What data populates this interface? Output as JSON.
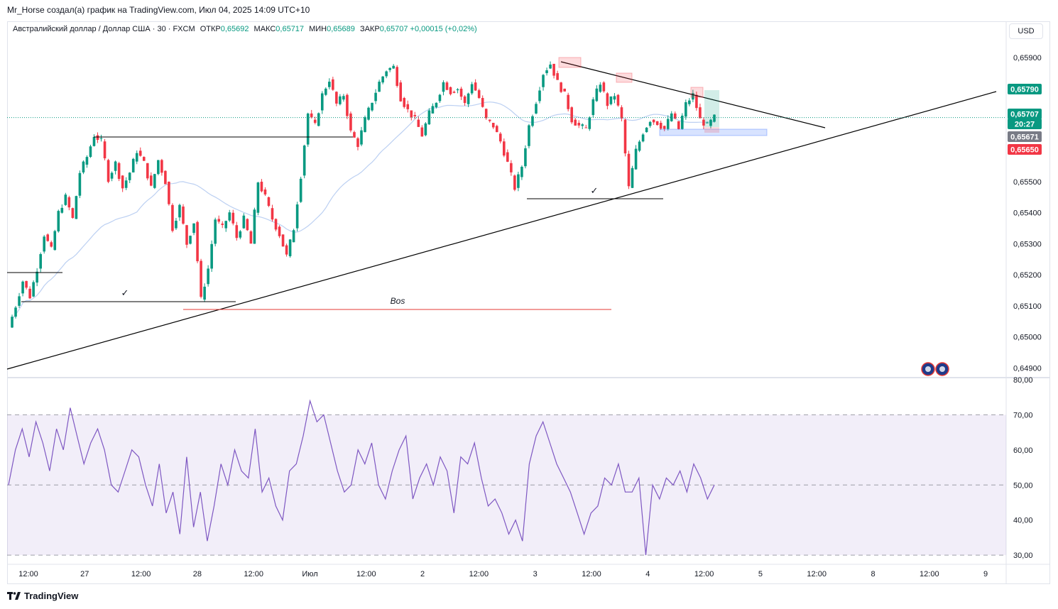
{
  "caption": "Mr_Horse создал(а) график на TradingView.com, Июл 04, 2025 14:09 UTC+10",
  "legend": {
    "symbol": "Австралийский доллар / Доллар США · 30 · FXCM",
    "open_label": "ОТКР",
    "open": "0,65692",
    "high_label": "МАКС",
    "high": "0,65717",
    "low_label": "МИН",
    "low": "0,65689",
    "close_label": "ЗАКР",
    "close": "0,65707",
    "change": "+0,00015 (+0,02%)"
  },
  "currency_button": "USD",
  "brand": "TradingView",
  "colors": {
    "up": "#089981",
    "down": "#f23645",
    "rsi": "#7e57c2",
    "ma": "#bcd0f2",
    "annotation_line": "#000000",
    "bos_line": "#e53935"
  },
  "chart_data": {
    "type": "candlestick",
    "price_axis": {
      "ticks": [
        "0,65900",
        "0,65800",
        "0,65700",
        "0,65600",
        "0,65500",
        "0,65400",
        "0,65300",
        "0,65200",
        "0,65100",
        "0,65000",
        "0,64900"
      ],
      "ylim": [
        0.6488,
        0.6596
      ]
    },
    "time_axis": {
      "ticks": [
        "12:00",
        "27",
        "12:00",
        "28",
        "12:00",
        "Июл",
        "12:00",
        "2",
        "12:00",
        "3",
        "12:00",
        "4",
        "12:00",
        "5",
        "12:00",
        "8",
        "12:00",
        "9"
      ]
    },
    "price_labels": [
      {
        "text": "0,65790",
        "value": 0.6579,
        "color": "#089981"
      },
      {
        "text": "0,65707",
        "value": 0.65707,
        "color": "#089981"
      },
      {
        "text": "20:27",
        "value": 0.65685,
        "color": "#089981"
      },
      {
        "text": "0,65671",
        "value": 0.65671,
        "color": "#787b86"
      },
      {
        "text": "0,65650",
        "value": 0.6565,
        "color": "#f23645"
      }
    ],
    "last_price": 0.65707,
    "ohlc_last": {
      "open": 0.65692,
      "high": 0.65717,
      "low": 0.65689,
      "close": 0.65707
    },
    "price_path": [
      [
        0,
        0.6503
      ],
      [
        2,
        0.651
      ],
      [
        4,
        0.6518
      ],
      [
        6,
        0.6513
      ],
      [
        8,
        0.6522
      ],
      [
        10,
        0.6533
      ],
      [
        12,
        0.6528
      ],
      [
        14,
        0.654
      ],
      [
        16,
        0.6545
      ],
      [
        18,
        0.6538
      ],
      [
        20,
        0.6553
      ],
      [
        22,
        0.6558
      ],
      [
        24,
        0.6565
      ],
      [
        26,
        0.6563
      ],
      [
        28,
        0.6551
      ],
      [
        30,
        0.6556
      ],
      [
        32,
        0.6548
      ],
      [
        34,
        0.6553
      ],
      [
        36,
        0.656
      ],
      [
        38,
        0.6556
      ],
      [
        40,
        0.6548
      ],
      [
        42,
        0.6557
      ],
      [
        44,
        0.655
      ],
      [
        46,
        0.6535
      ],
      [
        48,
        0.6542
      ],
      [
        50,
        0.653
      ],
      [
        52,
        0.6537
      ],
      [
        54,
        0.6512
      ],
      [
        56,
        0.6522
      ],
      [
        58,
        0.6538
      ],
      [
        60,
        0.6535
      ],
      [
        62,
        0.654
      ],
      [
        64,
        0.6532
      ],
      [
        66,
        0.6538
      ],
      [
        68,
        0.653
      ],
      [
        70,
        0.655
      ],
      [
        72,
        0.6545
      ],
      [
        74,
        0.6538
      ],
      [
        76,
        0.6533
      ],
      [
        78,
        0.6526
      ],
      [
        80,
        0.6535
      ],
      [
        82,
        0.6552
      ],
      [
        84,
        0.6572
      ],
      [
        86,
        0.6568
      ],
      [
        88,
        0.6578
      ],
      [
        90,
        0.6583
      ],
      [
        92,
        0.6575
      ],
      [
        94,
        0.6578
      ],
      [
        96,
        0.6566
      ],
      [
        98,
        0.6562
      ],
      [
        100,
        0.657
      ],
      [
        102,
        0.6576
      ],
      [
        104,
        0.6582
      ],
      [
        106,
        0.6586
      ],
      [
        108,
        0.6587
      ],
      [
        110,
        0.6577
      ],
      [
        112,
        0.6573
      ],
      [
        114,
        0.657
      ],
      [
        116,
        0.6565
      ],
      [
        118,
        0.6572
      ],
      [
        120,
        0.6576
      ],
      [
        122,
        0.6582
      ],
      [
        124,
        0.6579
      ],
      [
        126,
        0.658
      ],
      [
        128,
        0.6575
      ],
      [
        130,
        0.6582
      ],
      [
        132,
        0.6577
      ],
      [
        134,
        0.657
      ],
      [
        136,
        0.6568
      ],
      [
        138,
        0.6563
      ],
      [
        140,
        0.6556
      ],
      [
        142,
        0.6548
      ],
      [
        144,
        0.6555
      ],
      [
        146,
        0.6568
      ],
      [
        148,
        0.6576
      ],
      [
        150,
        0.6585
      ],
      [
        152,
        0.6588
      ],
      [
        154,
        0.6582
      ],
      [
        156,
        0.6578
      ],
      [
        158,
        0.657
      ],
      [
        160,
        0.6568
      ],
      [
        162,
        0.6567
      ],
      [
        164,
        0.6576
      ],
      [
        166,
        0.6582
      ],
      [
        168,
        0.6575
      ],
      [
        170,
        0.6578
      ],
      [
        172,
        0.657
      ],
      [
        174,
        0.6548
      ],
      [
        176,
        0.656
      ],
      [
        178,
        0.6566
      ],
      [
        180,
        0.657
      ],
      [
        182,
        0.6569
      ],
      [
        184,
        0.6567
      ],
      [
        186,
        0.6572
      ],
      [
        188,
        0.6567
      ],
      [
        190,
        0.6575
      ],
      [
        192,
        0.6578
      ],
      [
        194,
        0.657
      ],
      [
        196,
        0.6568
      ],
      [
        198,
        0.65707
      ]
    ],
    "rsi": {
      "axis_ticks": [
        "80,00",
        "70,00",
        "60,00",
        "50,00",
        "40,00",
        "30,00"
      ],
      "ylim": [
        28,
        80
      ],
      "band": [
        30,
        70
      ],
      "midline": 50,
      "values": [
        50,
        60,
        66,
        58,
        68,
        62,
        54,
        66,
        60,
        72,
        64,
        56,
        62,
        66,
        60,
        50,
        48,
        54,
        60,
        58,
        50,
        44,
        56,
        42,
        48,
        36,
        58,
        38,
        48,
        34,
        44,
        56,
        50,
        60,
        54,
        52,
        66,
        48,
        52,
        44,
        40,
        54,
        56,
        64,
        74,
        68,
        70,
        62,
        54,
        48,
        50,
        60,
        56,
        62,
        50,
        46,
        54,
        60,
        64,
        46,
        52,
        56,
        50,
        58,
        54,
        42,
        58,
        56,
        62,
        52,
        44,
        46,
        42,
        36,
        40,
        34,
        56,
        64,
        68,
        62,
        56,
        52,
        48,
        42,
        36,
        42,
        44,
        52,
        50,
        56,
        48,
        48,
        52,
        30,
        50,
        46,
        52,
        50,
        54,
        48,
        56,
        52,
        46,
        50
      ]
    }
  },
  "annotations": {
    "bos_label": "Bos",
    "check_marks": [
      "✓",
      "✓"
    ]
  }
}
